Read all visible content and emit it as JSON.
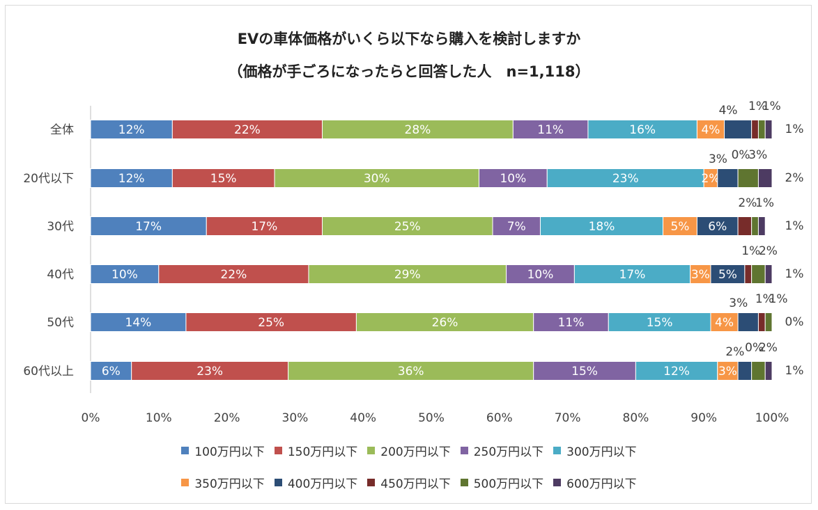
{
  "chart_data": {
    "type": "bar",
    "orientation": "horizontal",
    "stacked": true,
    "title": "EVの車体価格がいくら以下なら購入を検討しますか",
    "subtitle": "（価格が手ごろになったらと回答した人　n=1,118）",
    "categories": [
      "全体",
      "20代以下",
      "30代",
      "40代",
      "50代",
      "60代以上"
    ],
    "xlim": [
      0,
      100
    ],
    "x_ticks": [
      "0%",
      "10%",
      "20%",
      "30%",
      "40%",
      "50%",
      "60%",
      "70%",
      "80%",
      "90%",
      "100%"
    ],
    "legend_position": "bottom",
    "grid": false,
    "series": [
      {
        "name": "100万円以下",
        "color": "#4f81bd",
        "values": [
          12,
          12,
          17,
          10,
          14,
          6
        ],
        "labels": [
          "12%",
          "12%",
          "17%",
          "10%",
          "14%",
          "6%"
        ]
      },
      {
        "name": "150万円以下",
        "color": "#c0504d",
        "values": [
          22,
          15,
          17,
          22,
          25,
          23
        ],
        "labels": [
          "22%",
          "15%",
          "17%",
          "22%",
          "25%",
          "23%"
        ]
      },
      {
        "name": "200万円以下",
        "color": "#9bbb59",
        "values": [
          28,
          30,
          25,
          29,
          26,
          36
        ],
        "labels": [
          "28%",
          "30%",
          "25%",
          "29%",
          "26%",
          "36%"
        ]
      },
      {
        "name": "250万円以下",
        "color": "#8064a2",
        "values": [
          11,
          10,
          7,
          10,
          11,
          15
        ],
        "labels": [
          "11%",
          "10%",
          "7%",
          "10%",
          "11%",
          "15%"
        ]
      },
      {
        "name": "300万円以下",
        "color": "#4bacc6",
        "values": [
          16,
          23,
          18,
          17,
          15,
          12
        ],
        "labels": [
          "16%",
          "23%",
          "18%",
          "17%",
          "15%",
          "12%"
        ]
      },
      {
        "name": "350万円以下",
        "color": "#f79646",
        "values": [
          4,
          2,
          5,
          3,
          4,
          3
        ],
        "labels": [
          "4%",
          "2%",
          "5%",
          "3%",
          "4%",
          "3%"
        ]
      },
      {
        "name": "400万円以下",
        "color": "#2c4d75",
        "values": [
          4,
          3,
          6,
          5,
          3,
          2
        ],
        "labels": [
          "4%",
          "3%",
          "6%",
          "5%",
          "3%",
          "2%"
        ]
      },
      {
        "name": "450万円以下",
        "color": "#772c2a",
        "values": [
          1,
          0,
          2,
          1,
          1,
          0
        ],
        "labels": [
          "1%",
          "0%",
          "2%",
          "1%",
          "1%",
          "0%"
        ]
      },
      {
        "name": "500万円以下",
        "color": "#5f7530",
        "values": [
          1,
          3,
          1,
          2,
          1,
          2
        ],
        "labels": [
          "1%",
          "3%",
          "1%",
          "2%",
          "1%",
          "2%"
        ]
      },
      {
        "name": "600万円以下",
        "color": "#4d3b62",
        "values": [
          1,
          2,
          1,
          1,
          0,
          1
        ],
        "labels": [
          "1%",
          "2%",
          "1%",
          "1%",
          "0%",
          "1%"
        ]
      }
    ]
  }
}
